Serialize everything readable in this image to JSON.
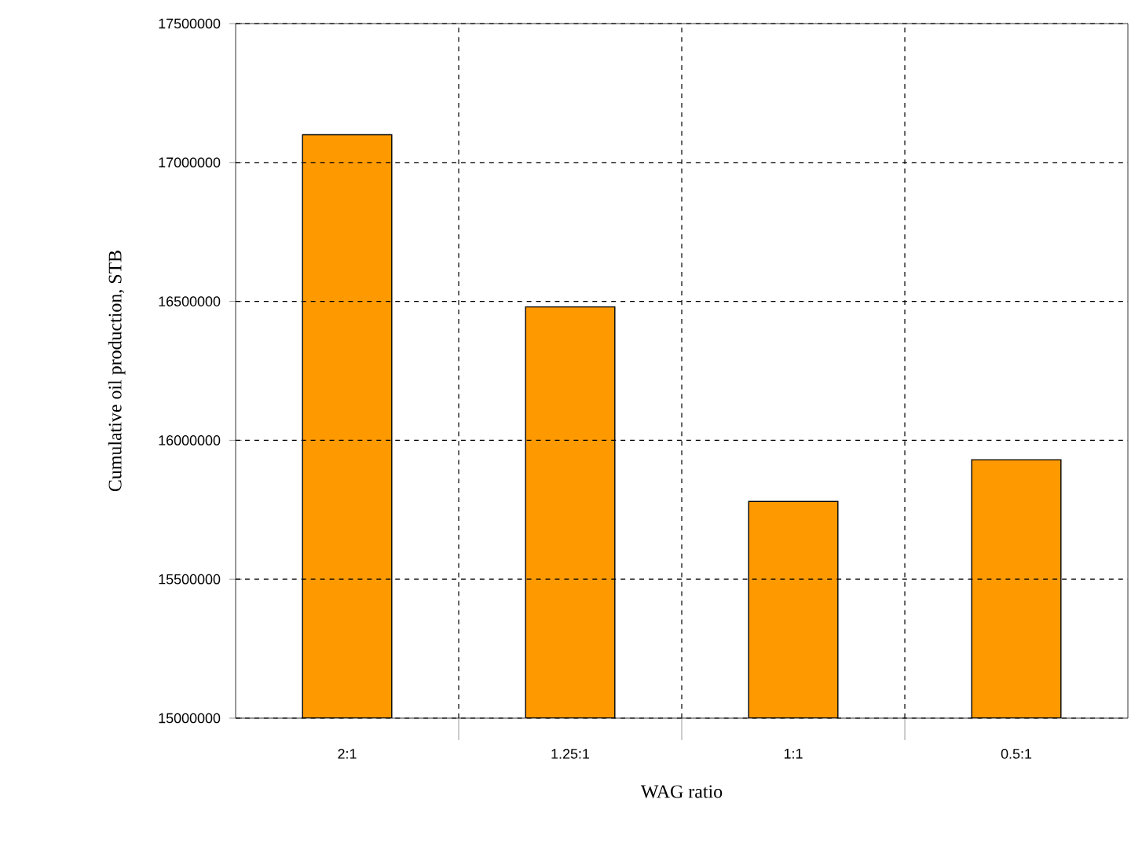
{
  "chart_data": {
    "type": "bar",
    "xlabel": "WAG ratio",
    "ylabel": "Cumulative oil production, STB",
    "categories": [
      "2:1",
      "1.25:1",
      "1:1",
      "0.5:1"
    ],
    "values": [
      17100000,
      16480000,
      15780000,
      15930000
    ],
    "color": "#ff9900",
    "ylim": [
      15000000,
      17500000
    ],
    "yticks": [
      15000000,
      15500000,
      16000000,
      16500000,
      17000000,
      17500000
    ],
    "grid": true
  }
}
